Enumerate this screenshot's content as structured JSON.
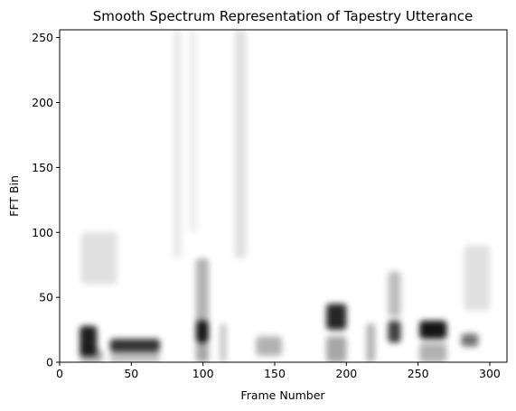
{
  "chart_data": {
    "type": "heatmap",
    "title": "Smooth Spectrum Representation of Tapestry Utterance",
    "xlabel": "Frame Number",
    "ylabel": "FFT Bin",
    "xlim": [
      0,
      312
    ],
    "ylim": [
      0,
      256
    ],
    "x_ticks": [
      0,
      50,
      100,
      150,
      200,
      250,
      300
    ],
    "y_ticks": [
      0,
      50,
      100,
      150,
      200,
      250
    ],
    "colormap": "gray_r",
    "grid": false,
    "legend": "none",
    "intensity_units": "relative magnitude (0 = white, 1 = black)",
    "regions": [
      {
        "frames": [
          14,
          26
        ],
        "bins": [
          5,
          28
        ],
        "intensity": 0.88
      },
      {
        "frames": [
          14,
          30
        ],
        "bins": [
          0,
          10
        ],
        "intensity": 0.35
      },
      {
        "frames": [
          35,
          70
        ],
        "bins": [
          8,
          18
        ],
        "intensity": 0.8
      },
      {
        "frames": [
          35,
          70
        ],
        "bins": [
          0,
          8
        ],
        "intensity": 0.25
      },
      {
        "frames": [
          15,
          40
        ],
        "bins": [
          60,
          100
        ],
        "intensity": 0.12
      },
      {
        "frames": [
          79,
          85
        ],
        "bins": [
          80,
          256
        ],
        "intensity": 0.08
      },
      {
        "frames": [
          90,
          96
        ],
        "bins": [
          100,
          256
        ],
        "intensity": 0.06
      },
      {
        "frames": [
          95,
          104
        ],
        "bins": [
          15,
          32
        ],
        "intensity": 0.9
      },
      {
        "frames": [
          95,
          104
        ],
        "bins": [
          30,
          80
        ],
        "intensity": 0.3
      },
      {
        "frames": [
          95,
          104
        ],
        "bins": [
          0,
          15
        ],
        "intensity": 0.35
      },
      {
        "frames": [
          112,
          116
        ],
        "bins": [
          0,
          30
        ],
        "intensity": 0.25
      },
      {
        "frames": [
          122,
          130
        ],
        "bins": [
          80,
          256
        ],
        "intensity": 0.12
      },
      {
        "frames": [
          137,
          155
        ],
        "bins": [
          5,
          20
        ],
        "intensity": 0.3
      },
      {
        "frames": [
          186,
          200
        ],
        "bins": [
          25,
          45
        ],
        "intensity": 0.85
      },
      {
        "frames": [
          186,
          200
        ],
        "bins": [
          0,
          20
        ],
        "intensity": 0.35
      },
      {
        "frames": [
          214,
          220
        ],
        "bins": [
          0,
          30
        ],
        "intensity": 0.3
      },
      {
        "frames": [
          229,
          238
        ],
        "bins": [
          15,
          32
        ],
        "intensity": 0.75
      },
      {
        "frames": [
          229,
          238
        ],
        "bins": [
          35,
          70
        ],
        "intensity": 0.25
      },
      {
        "frames": [
          251,
          270
        ],
        "bins": [
          18,
          32
        ],
        "intensity": 0.92
      },
      {
        "frames": [
          251,
          270
        ],
        "bins": [
          0,
          15
        ],
        "intensity": 0.3
      },
      {
        "frames": [
          280,
          292
        ],
        "bins": [
          12,
          22
        ],
        "intensity": 0.55
      },
      {
        "frames": [
          282,
          300
        ],
        "bins": [
          40,
          90
        ],
        "intensity": 0.12
      }
    ]
  }
}
